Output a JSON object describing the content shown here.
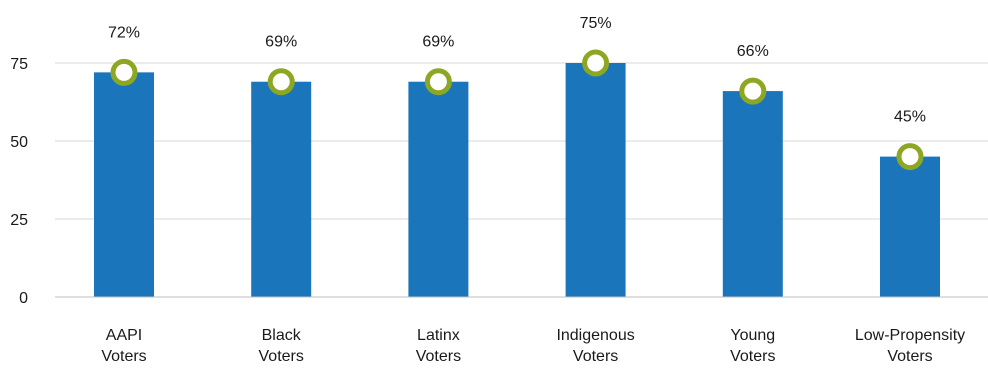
{
  "chart_data": {
    "type": "bar",
    "title": "",
    "xlabel": "",
    "ylabel": "",
    "ylim": [
      0,
      75
    ],
    "yticks": [
      0,
      25,
      50,
      75
    ],
    "grid": true,
    "categories": [
      [
        "AAPI",
        "Voters"
      ],
      [
        "Black",
        "Voters"
      ],
      [
        "Latinx",
        "Voters"
      ],
      [
        "Indigenous",
        "Voters"
      ],
      [
        "Young",
        "Voters"
      ],
      [
        "Low-Propensity",
        "Voters"
      ]
    ],
    "values": [
      72,
      69,
      69,
      75,
      66,
      45
    ],
    "data_labels": [
      "72%",
      "69%",
      "69%",
      "75%",
      "66%",
      "45%"
    ],
    "colors": {
      "bar": "#1b75bb",
      "marker_stroke": "#8ea723",
      "marker_fill": "#ffffff",
      "grid": "#d9d9d9",
      "axis": "#bfbfbf",
      "text": "#1a1a1a"
    }
  }
}
